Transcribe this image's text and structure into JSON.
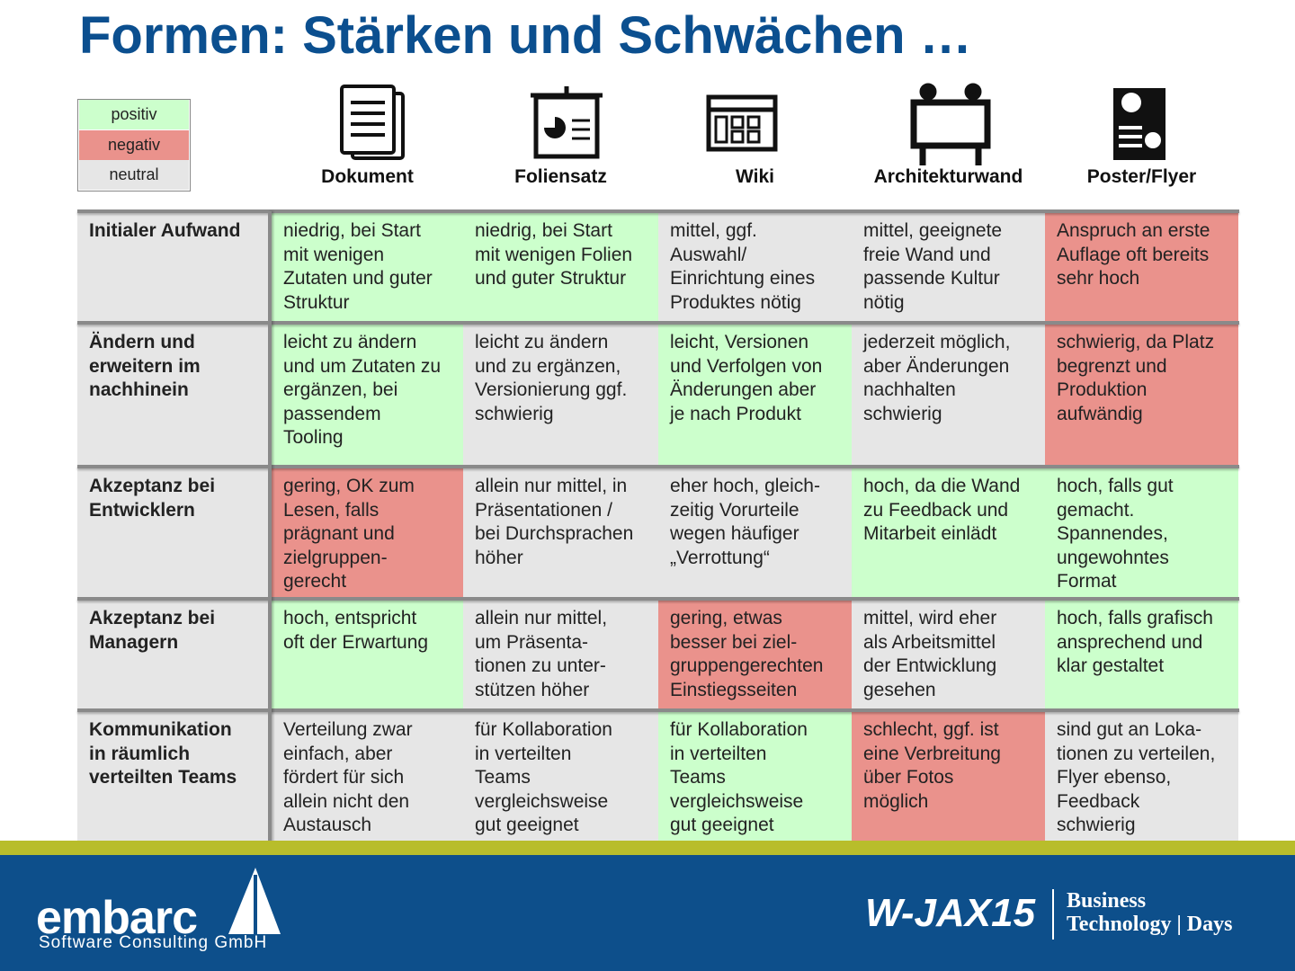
{
  "title": "Formen: Stärken und Schwächen …",
  "legend": [
    {
      "label": "positiv",
      "color": "#ccffcc"
    },
    {
      "label": "negativ",
      "color": "#ea928c"
    },
    {
      "label": "neutral",
      "color": "#e6e6e6"
    }
  ],
  "columns": [
    "Dokument",
    "Foliensatz",
    "Wiki",
    "Architekturwand",
    "Poster/Flyer"
  ],
  "row_header_color": "#e6e6e6",
  "rows": [
    {
      "header": "Initialer Aufwand",
      "cells": [
        {
          "text": "niedrig, bei Start\nmit wenigen\nZutaten und guter\nStruktur",
          "color": "#ccffcc"
        },
        {
          "text": "niedrig, bei Start\nmit wenigen Folien\nund guter Struktur",
          "color": "#ccffcc"
        },
        {
          "text": "mittel, ggf.\nAuswahl/\nEinrichtung eines\nProduktes nötig",
          "color": "#e6e6e6"
        },
        {
          "text": "mittel, geeignete\nfreie Wand und\npassende Kultur\nnötig",
          "color": "#e6e6e6"
        },
        {
          "text": "Anspruch an erste\nAuflage oft bereits\nsehr hoch",
          "color": "#ea928c"
        }
      ]
    },
    {
      "header": "Ändern und\nerweitern im\nnachhinein",
      "cells": [
        {
          "text": "leicht zu ändern\nund um Zutaten zu\nergänzen, bei\npassendem\nTooling",
          "color": "#ccffcc"
        },
        {
          "text": "leicht zu ändern\nund zu ergänzen,\nVersionierung ggf.\nschwierig",
          "color": "#e6e6e6"
        },
        {
          "text": "leicht, Versionen\nund Verfolgen von\nÄnderungen aber\nje nach Produkt",
          "color": "#ccffcc"
        },
        {
          "text": "jederzeit möglich,\naber Änderungen\nnachhalten\nschwierig",
          "color": "#e6e6e6"
        },
        {
          "text": "schwierig, da Platz\nbegrenzt und\nProduktion\naufwändig",
          "color": "#ea928c"
        }
      ]
    },
    {
      "header": "Akzeptanz bei\nEntwicklern",
      "cells": [
        {
          "text": "gering, OK zum\nLesen, falls\nprägnant und\nzielgruppen-\ngerecht",
          "color": "#ea928c"
        },
        {
          "text": "allein nur mittel, in\nPräsentationen /\nbei Durchsprachen\nhöher",
          "color": "#e6e6e6"
        },
        {
          "text": "eher hoch, gleich-\nzeitig Vorurteile\nwegen häufiger\n„Verrottung“",
          "color": "#e6e6e6"
        },
        {
          "text": "hoch, da die Wand\nzu Feedback und\nMitarbeit einlädt",
          "color": "#ccffcc"
        },
        {
          "text": "hoch, falls gut\ngemacht.\nSpannendes,\nungewohntes\nFormat",
          "color": "#ccffcc"
        }
      ]
    },
    {
      "header": "Akzeptanz bei\nManagern",
      "cells": [
        {
          "text": "hoch, entspricht\noft der Erwartung",
          "color": "#ccffcc"
        },
        {
          "text": "allein nur mittel,\num Präsenta-\ntionen zu unter-\nstützen höher",
          "color": "#e6e6e6"
        },
        {
          "text": "gering, etwas\nbesser bei ziel-\ngruppengerechten\nEinstiegsseiten",
          "color": "#ea928c"
        },
        {
          "text": "mittel, wird eher\nals Arbeitsmittel\nder Entwicklung\ngesehen",
          "color": "#e6e6e6"
        },
        {
          "text": "hoch, falls grafisch\nansprechend und\nklar gestaltet",
          "color": "#ccffcc"
        }
      ]
    },
    {
      "header": "Kommunikation\nin räumlich\nverteilten Teams",
      "cells": [
        {
          "text": "Verteilung zwar\neinfach, aber\nfördert für sich\nallein nicht den\nAustausch",
          "color": "#e6e6e6"
        },
        {
          "text": "für Kollaboration\nin verteilten\nTeams\nvergleichsweise\ngut geeignet",
          "color": "#e6e6e6"
        },
        {
          "text": "für Kollaboration\nin verteilten\nTeams\nvergleichsweise\ngut geeignet",
          "color": "#ccffcc"
        },
        {
          "text": "schlecht, ggf. ist\neine Verbreitung\nüber Fotos\nmöglich",
          "color": "#ea928c"
        },
        {
          "text": "sind gut an Loka-\ntionen zu verteilen,\nFlyer ebenso,\nFeedback\nschwierig",
          "color": "#e6e6e6"
        }
      ]
    }
  ],
  "footer": {
    "company": "embarc",
    "company_sub": "Software Consulting GmbH",
    "event": "W-JAX15",
    "event_line1": "Business",
    "event_line2": "Technology | Days"
  }
}
